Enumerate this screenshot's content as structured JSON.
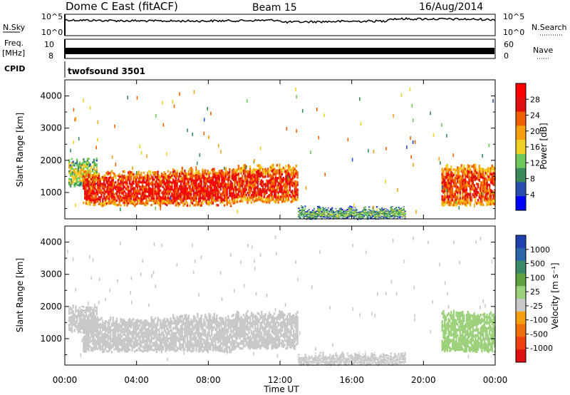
{
  "header": {
    "station": "Dome C East (fitACF)",
    "beam": "Beam 15",
    "date": "16/Aug/2014"
  },
  "noise_panel": {
    "left_label": "N.Sky",
    "right_label": "N.Search",
    "left_ticks": [
      "10^5",
      "10^0"
    ],
    "right_ticks": [
      "10^5",
      "10^0"
    ]
  },
  "freq_panel": {
    "left_label_1": "Freq.",
    "left_label_2": "[MHz]",
    "left_ticks": [
      "10",
      "8"
    ],
    "right_label": "Nave",
    "right_ticks": [
      "60",
      "0"
    ]
  },
  "cpid_panel": {
    "label": "CPID",
    "program": "twofsound 3501"
  },
  "x_axis": {
    "label": "Time UT",
    "ticks": [
      "00:00",
      "04:00",
      "08:00",
      "12:00",
      "16:00",
      "20:00",
      "00:00"
    ]
  },
  "power_panel": {
    "ylabel": "Slant Range [km]",
    "yticks": [
      "1000",
      "2000",
      "3000",
      "4000"
    ],
    "colorbar_label": "Power [dB]",
    "colorbar_ticks": [
      "4",
      "8",
      "12",
      "16",
      "20",
      "24",
      "28"
    ],
    "colorbar_colors": [
      "#0000ff",
      "#2a4fb0",
      "#3a8a5a",
      "#6fc85a",
      "#f0d020",
      "#f5a010",
      "#f06000",
      "#e01010",
      "#ff0000"
    ]
  },
  "velocity_panel": {
    "ylabel": "Slant Range [km]",
    "yticks": [
      "1000",
      "2000",
      "3000",
      "4000"
    ],
    "colorbar_label": "Velocity  [m s⁻¹]",
    "colorbar_ticks": [
      "1000",
      "500",
      "100",
      "25",
      "-25",
      "-100",
      "-500",
      "-1000"
    ],
    "colorbar_colors": [
      "#2040b0",
      "#2a66a8",
      "#3a8a6a",
      "#5fa040",
      "#9cd07a",
      "#c8c8c8",
      "#f5a010",
      "#f07010",
      "#ee4010",
      "#e01010"
    ]
  },
  "chart_data": [
    {
      "type": "heatmap",
      "title": "Power",
      "x": [
        "00:00",
        "04:00",
        "08:00",
        "12:00",
        "16:00",
        "20:00",
        "00:00"
      ],
      "xlabel": "Time UT",
      "ylabel": "Slant Range [km]",
      "ylim": [
        180,
        4500
      ],
      "colorbar": {
        "label": "Power [dB]",
        "range": [
          0,
          30
        ]
      },
      "regions": [
        {
          "t_start": 0.2,
          "t_end": 1.8,
          "range_low": 1200,
          "range_high": 2000,
          "value": 14
        },
        {
          "t_start": 1.0,
          "t_end": 6.0,
          "range_low": 600,
          "range_high": 1600,
          "value": 26
        },
        {
          "t_start": 6.0,
          "t_end": 9.5,
          "range_low": 600,
          "range_high": 1700,
          "value": 27
        },
        {
          "t_start": 9.5,
          "t_end": 13.0,
          "range_low": 700,
          "range_high": 1800,
          "value": 25
        },
        {
          "t_start": 13.0,
          "t_end": 19.0,
          "range_low": 200,
          "range_high": 500,
          "value": 10
        },
        {
          "t_start": 21.0,
          "t_end": 24.0,
          "range_low": 600,
          "range_high": 1800,
          "value": 24
        }
      ]
    },
    {
      "type": "heatmap",
      "title": "Velocity",
      "x": [
        "00:00",
        "04:00",
        "08:00",
        "12:00",
        "16:00",
        "20:00",
        "00:00"
      ],
      "xlabel": "Time UT",
      "ylabel": "Slant Range [km]",
      "ylim": [
        180,
        4500
      ],
      "colorbar": {
        "label": "Velocity  [m s⁻¹]",
        "range": [
          -1000,
          1000
        ]
      },
      "regions": [
        {
          "t_start": 0.2,
          "t_end": 1.8,
          "range_low": 1200,
          "range_high": 2000,
          "value": -100
        },
        {
          "t_start": 1.0,
          "t_end": 6.0,
          "range_low": 600,
          "range_high": 1600,
          "value": -150
        },
        {
          "t_start": 6.0,
          "t_end": 9.5,
          "range_low": 600,
          "range_high": 1700,
          "value": -120
        },
        {
          "t_start": 9.5,
          "t_end": 13.0,
          "range_low": 700,
          "range_high": 1800,
          "value": -80
        },
        {
          "t_start": 13.0,
          "t_end": 19.0,
          "range_low": 200,
          "range_high": 500,
          "value": -50
        },
        {
          "t_start": 21.0,
          "t_end": 24.0,
          "range_low": 600,
          "range_high": 1800,
          "value": 100
        }
      ]
    }
  ]
}
